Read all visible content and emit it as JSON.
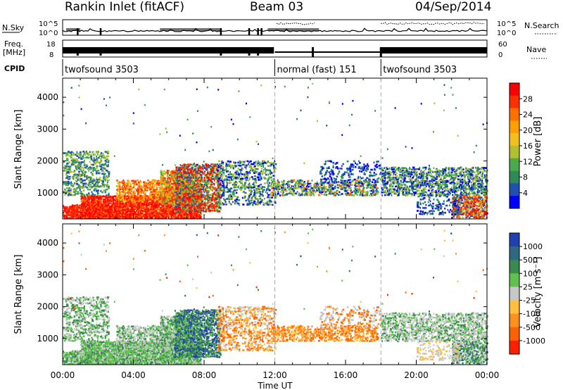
{
  "header": {
    "station": "Rankin Inlet (fitACF)",
    "beam": "Beam 03",
    "date": "04/Sep/2014"
  },
  "noise_panel": {
    "left_label": "N.Sky",
    "right_label": "N.Search",
    "left_ticks": [
      "10^5",
      "10^0"
    ],
    "right_ticks": [
      "10^5",
      "10^0"
    ]
  },
  "freq_panel": {
    "left_label_1": "Freq.",
    "left_label_2": "[MHz]",
    "right_label": "Nave",
    "left_ticks": [
      "18",
      "8"
    ],
    "right_ticks": [
      "60",
      "0"
    ]
  },
  "cpid": {
    "label": "CPID",
    "segments": [
      {
        "label": "twofsound 3503",
        "start_hour": 0
      },
      {
        "label": "normal (fast) 151",
        "start_hour": 12
      },
      {
        "label": "twofsound 3503",
        "start_hour": 18
      }
    ]
  },
  "chart_data": [
    {
      "type": "heatmap",
      "name": "power",
      "ylabel": "Slant Range [km]",
      "xlim_hours": [
        0,
        24
      ],
      "ylim_km": [
        180,
        4600
      ],
      "yticks": [
        1000,
        2000,
        3000,
        4000
      ],
      "colorbar": {
        "label": "Power [dB]",
        "ticks": [
          "28",
          "24",
          "20",
          "16",
          "12",
          "8",
          "4"
        ],
        "colors": [
          "#ff0000",
          "#ff3000",
          "#ff7000",
          "#ffa000",
          "#f0c020",
          "#b0c030",
          "#4caa4c",
          "#2e8b57",
          "#2050b0",
          "#0000ff"
        ]
      }
    },
    {
      "type": "heatmap",
      "name": "velocity",
      "ylabel": "Slant Range [km]",
      "xlim_hours": [
        0,
        24
      ],
      "ylim_km": [
        180,
        4600
      ],
      "yticks": [
        1000,
        2000,
        3000,
        4000
      ],
      "colorbar": {
        "label": "Velocity [m s⁻¹]",
        "ticks": [
          "1000",
          "500",
          "100",
          "25",
          "-25",
          "-100",
          "-500",
          "-1000"
        ],
        "colors": [
          "#2040b0",
          "#306880",
          "#3a8a50",
          "#60c050",
          "#c8c8c8",
          "#ffc040",
          "#ff9020",
          "#ff6000",
          "#ff2000"
        ]
      }
    }
  ],
  "time_axis": {
    "label": "Time UT",
    "ticks": [
      "00:00",
      "04:00",
      "08:00",
      "12:00",
      "16:00",
      "20:00",
      "00:00"
    ]
  }
}
